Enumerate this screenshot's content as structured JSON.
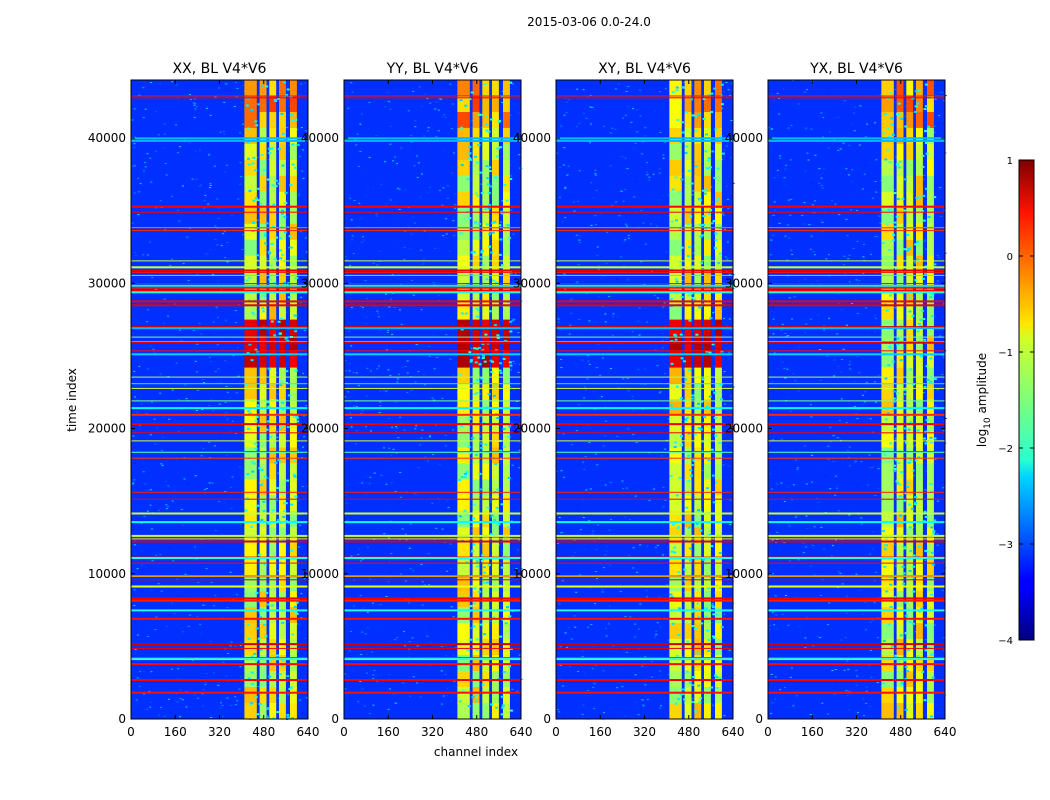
{
  "figure": {
    "suptitle": "2015-03-06 0.0-24.0"
  },
  "chart_data": {
    "type": "heatmap",
    "suptitle": "2015-03-06 0.0-24.0",
    "xlabel": "channel index",
    "ylabel": "time index",
    "xlim": [
      0,
      640
    ],
    "ylim": [
      0,
      44000
    ],
    "xticks": [
      0,
      160,
      320,
      480,
      640
    ],
    "yticks": [
      0,
      10000,
      20000,
      30000,
      40000
    ],
    "xtick_labels": [
      "0",
      "160",
      "320",
      "480",
      "640"
    ],
    "ytick_labels": [
      "0",
      "10000",
      "20000",
      "30000",
      "40000"
    ],
    "panels": [
      {
        "title": "XX, BL V4*V6"
      },
      {
        "title": "YY, BL V4*V6"
      },
      {
        "title": "XY, BL V4*V6"
      },
      {
        "title": "YX, BL V4*V6"
      }
    ],
    "bright_channel_band": [
      410,
      600
    ],
    "bright_columns": [
      [
        410,
        455
      ],
      [
        465,
        490
      ],
      [
        500,
        525
      ],
      [
        535,
        560
      ],
      [
        575,
        600
      ]
    ],
    "colorbar": {
      "label_prefix": "log",
      "label_sub": "10",
      "label_suffix": " amplitude",
      "range": [
        -4,
        1
      ],
      "ticks": [
        1,
        0,
        -1,
        -2,
        -3,
        -4
      ],
      "tick_labels": [
        "1",
        "0",
        "−1",
        "−2",
        "−3",
        "−4"
      ],
      "colormap": "jet"
    }
  }
}
